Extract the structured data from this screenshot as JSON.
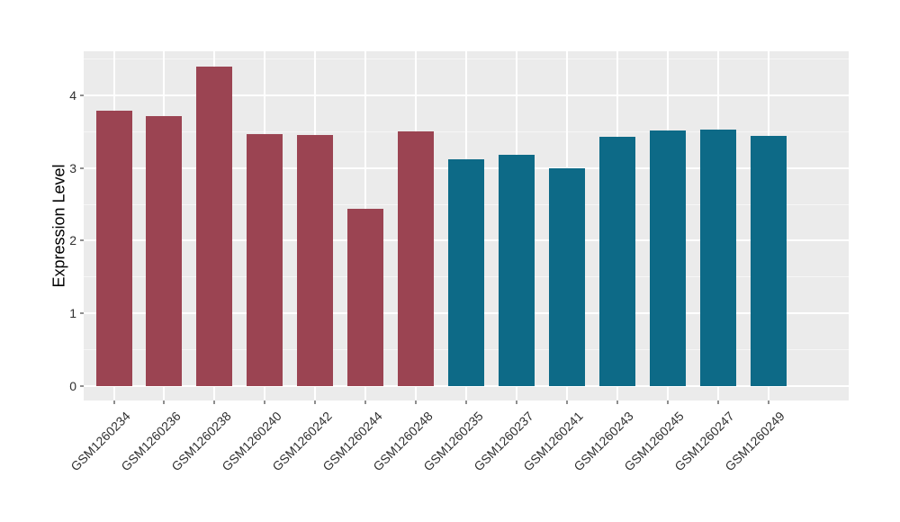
{
  "chart_data": {
    "type": "bar",
    "title": "",
    "xlabel": "",
    "ylabel": "Expression Level",
    "categories": [
      "GSM1260234",
      "GSM1260236",
      "GSM1260238",
      "GSM1260240",
      "GSM1260242",
      "GSM1260244",
      "GSM1260248",
      "GSM1260235",
      "GSM1260237",
      "GSM1260241",
      "GSM1260243",
      "GSM1260245",
      "GSM1260247",
      "GSM1260249"
    ],
    "values": [
      3.79,
      3.71,
      4.4,
      3.47,
      3.45,
      2.44,
      3.5,
      3.12,
      3.18,
      3.0,
      3.43,
      3.52,
      3.53,
      3.44
    ],
    "groups": [
      "group_a",
      "group_a",
      "group_a",
      "group_a",
      "group_a",
      "group_a",
      "group_a",
      "group_b",
      "group_b",
      "group_b",
      "group_b",
      "group_b",
      "group_b",
      "group_b"
    ],
    "group_colors": {
      "group_a": "#9B4452",
      "group_b": "#0D6A87"
    },
    "yticks": [
      0,
      1,
      2,
      3,
      4
    ],
    "minor_gridlines": [
      0.5,
      1.5,
      2.5,
      3.5,
      4.5
    ],
    "ylim": [
      -0.2,
      4.608
    ],
    "grid": "on",
    "legend": "none",
    "colors": {
      "panel_background": "#EBEBEB",
      "major_gridline": "#FFFFFF",
      "minor_gridline": "#F6F6F6",
      "tick_mark": "#8F8F8F",
      "tick_label": "#303030",
      "axis_title": "#000000"
    }
  }
}
